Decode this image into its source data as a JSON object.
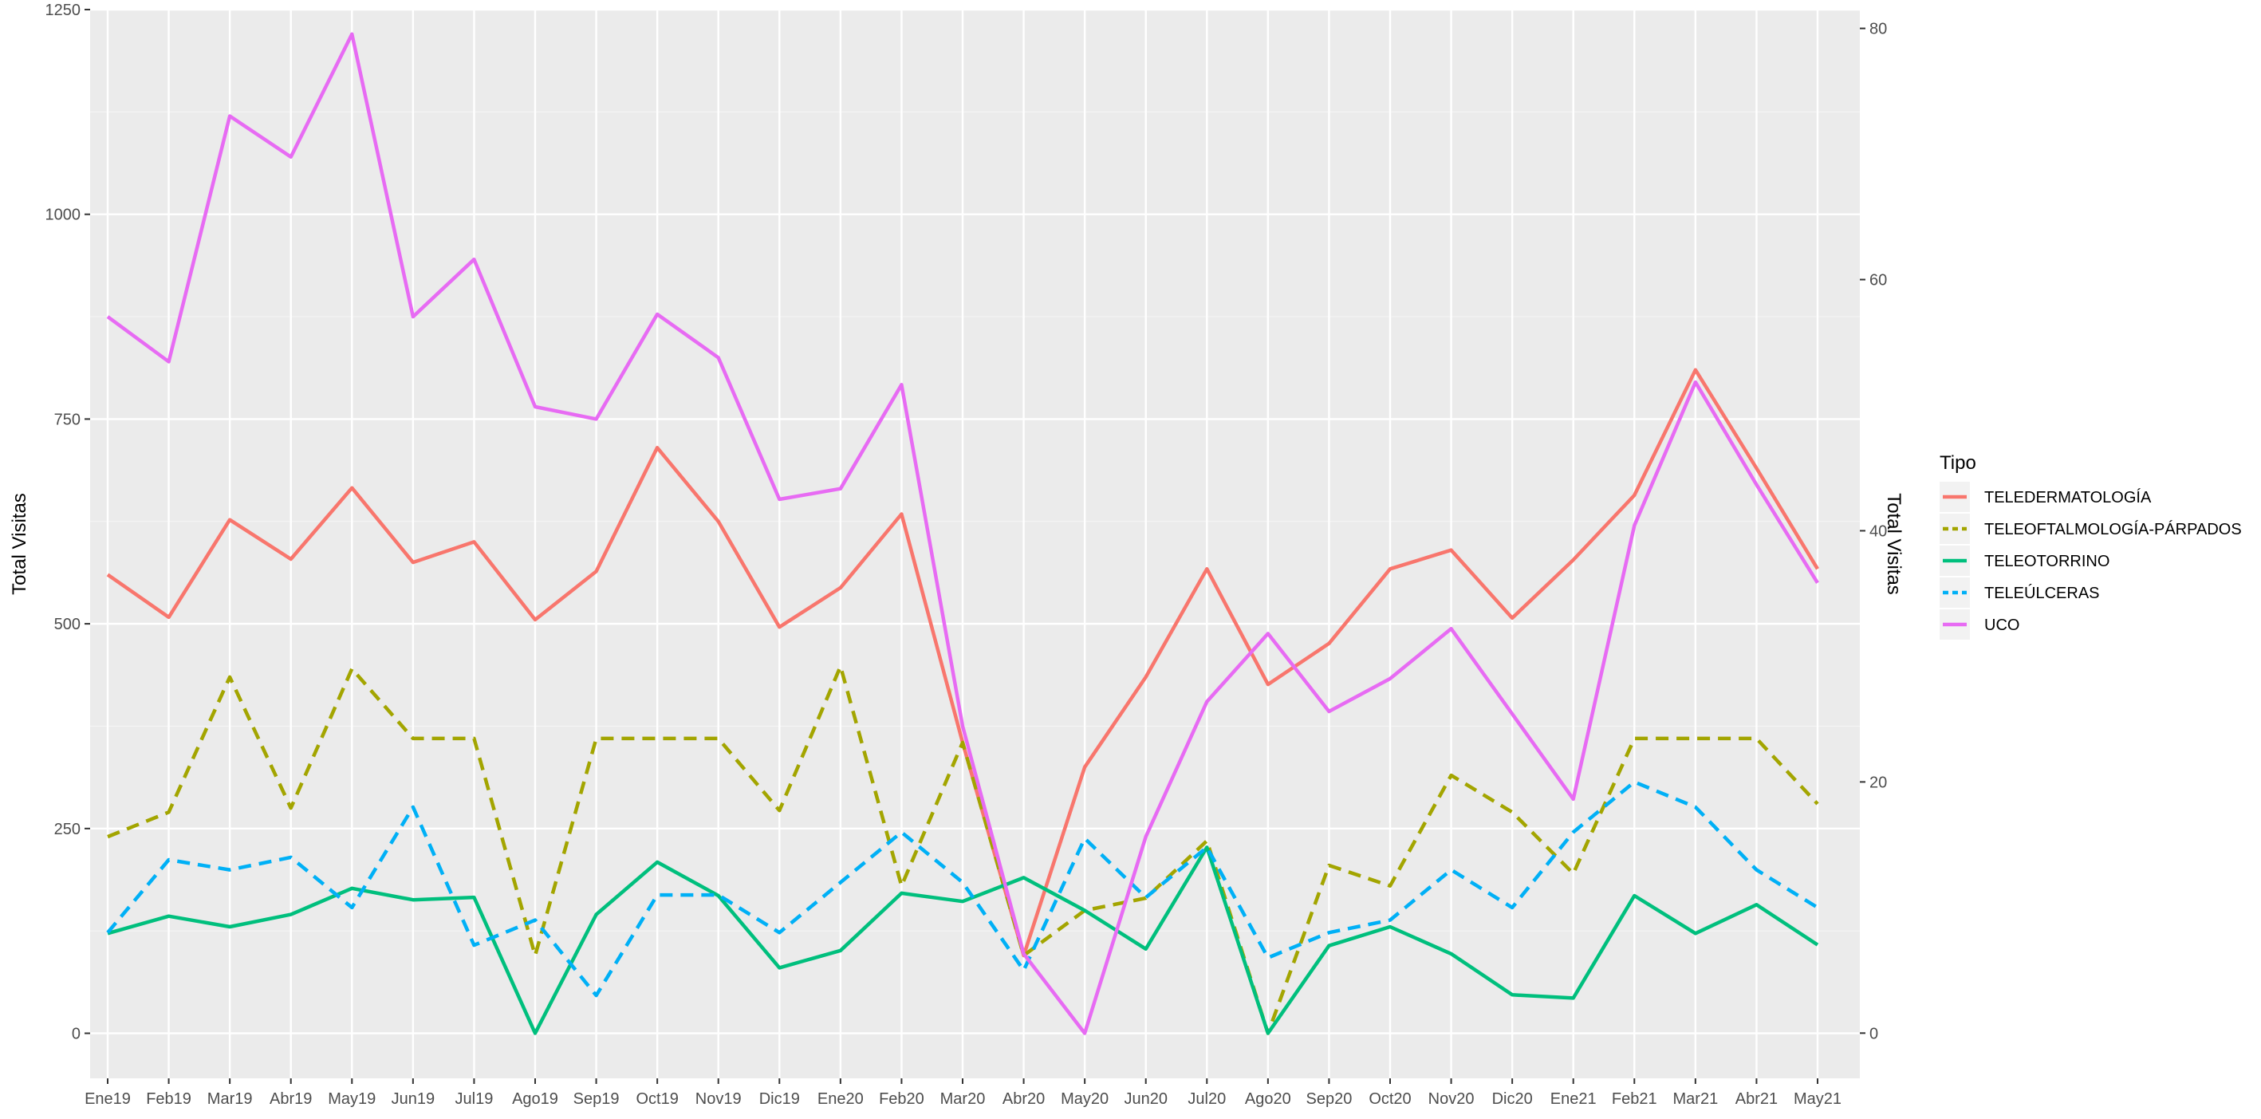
{
  "chart_data": {
    "type": "line",
    "title": "",
    "xlabel": "",
    "ylabel_left": "Total Visitas",
    "ylabel_right": "Total Visitas",
    "ylim_left": [
      -55,
      1250
    ],
    "ylim_right": [
      -3.6,
      81.5
    ],
    "yticks_left": [
      0,
      250,
      500,
      750,
      1000,
      1250
    ],
    "yticks_right": [
      0,
      20,
      40,
      60,
      80
    ],
    "grid": true,
    "legend_title": "Tipo",
    "legend_position": "right",
    "categories": [
      "Ene19",
      "Feb19",
      "Mar19",
      "Abr19",
      "May19",
      "Jun19",
      "Jul19",
      "Ago19",
      "Sep19",
      "Oct19",
      "Nov19",
      "Dic19",
      "Ene20",
      "Feb20",
      "Mar20",
      "Abr20",
      "May20",
      "Jun20",
      "Jul20",
      "Ago20",
      "Sep20",
      "Oct20",
      "Nov20",
      "Dic20",
      "Ene21",
      "Feb21",
      "Mar21",
      "Abr21",
      "May21"
    ],
    "series": [
      {
        "name": "TELEDERMATOLOGÍA",
        "axis": "left",
        "color": "#F8766D",
        "dash": "solid",
        "values": [
          560,
          508,
          627,
          579,
          666,
          575,
          600,
          505,
          564,
          715,
          625,
          496,
          544,
          634,
          355,
          95,
          325,
          435,
          567,
          426,
          476,
          567,
          590,
          507,
          578,
          657,
          810,
          690,
          567
        ]
      },
      {
        "name": "TELEOFTALMOLOGÍA-PÁRPADOS",
        "axis": "left",
        "color": "#A3A500",
        "dash": "dashed",
        "values": [
          240,
          270,
          435,
          275,
          445,
          360,
          360,
          95,
          360,
          360,
          360,
          272,
          448,
          180,
          355,
          95,
          150,
          165,
          235,
          0,
          205,
          180,
          315,
          270,
          195,
          360,
          360,
          360,
          280
        ]
      },
      {
        "name": "TELEOTORRINO",
        "axis": "left",
        "color": "#00BF7D",
        "dash": "solid",
        "values": [
          122,
          143,
          130,
          145,
          177,
          163,
          166,
          0,
          145,
          209,
          168,
          80,
          101,
          171,
          161,
          190,
          150,
          103,
          227,
          0,
          107,
          130,
          97,
          47,
          43,
          168,
          122,
          157,
          108
        ]
      },
      {
        "name": "TELEÚLCERAS",
        "axis": "right",
        "color": "#00B0F6",
        "dash": "dashed",
        "values": [
          8,
          13.8,
          13,
          14,
          10,
          18,
          7,
          9,
          3,
          11,
          11,
          8,
          12,
          16,
          12,
          5,
          15.5,
          10.8,
          14.8,
          6,
          8,
          9,
          13,
          10,
          16,
          20,
          18,
          13,
          10
        ]
      },
      {
        "name": "UCO",
        "axis": "left",
        "color": "#E76BF3",
        "dash": "solid",
        "values": [
          875,
          820,
          1120,
          1070,
          1220,
          875,
          945,
          765,
          750,
          878,
          825,
          652,
          665,
          792,
          375,
          97,
          0,
          240,
          405,
          488,
          393,
          433,
          494,
          390,
          286,
          620,
          795,
          670,
          550
        ]
      }
    ]
  }
}
